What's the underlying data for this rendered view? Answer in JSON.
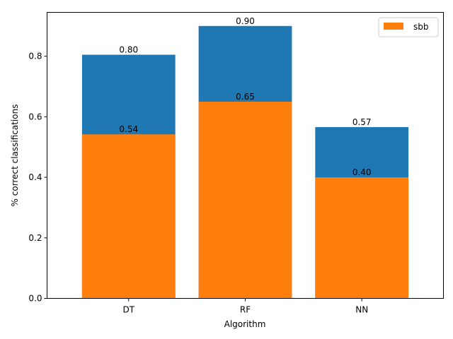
{
  "chart_data": {
    "type": "bar",
    "categories": [
      "DT",
      "RF",
      "NN"
    ],
    "series": [
      {
        "values": [
          0.805,
          0.9,
          0.566
        ],
        "color": "#1f77b4",
        "labels": [
          "0.80",
          "0.90",
          "0.57"
        ]
      },
      {
        "name": "sbb",
        "values": [
          0.542,
          0.65,
          0.4
        ],
        "color": "#ff7f0e",
        "labels": [
          "0.54",
          "0.65",
          "0.40"
        ]
      }
    ],
    "xlabel": "Algorithm",
    "ylabel": "% correct classifications",
    "ylim": [
      0,
      0.945
    ],
    "yticks": [
      "0.0",
      "0.2",
      "0.4",
      "0.6",
      "0.8"
    ],
    "legend": {
      "placement": "top-right",
      "entries": [
        "sbb"
      ]
    },
    "grid": false
  }
}
